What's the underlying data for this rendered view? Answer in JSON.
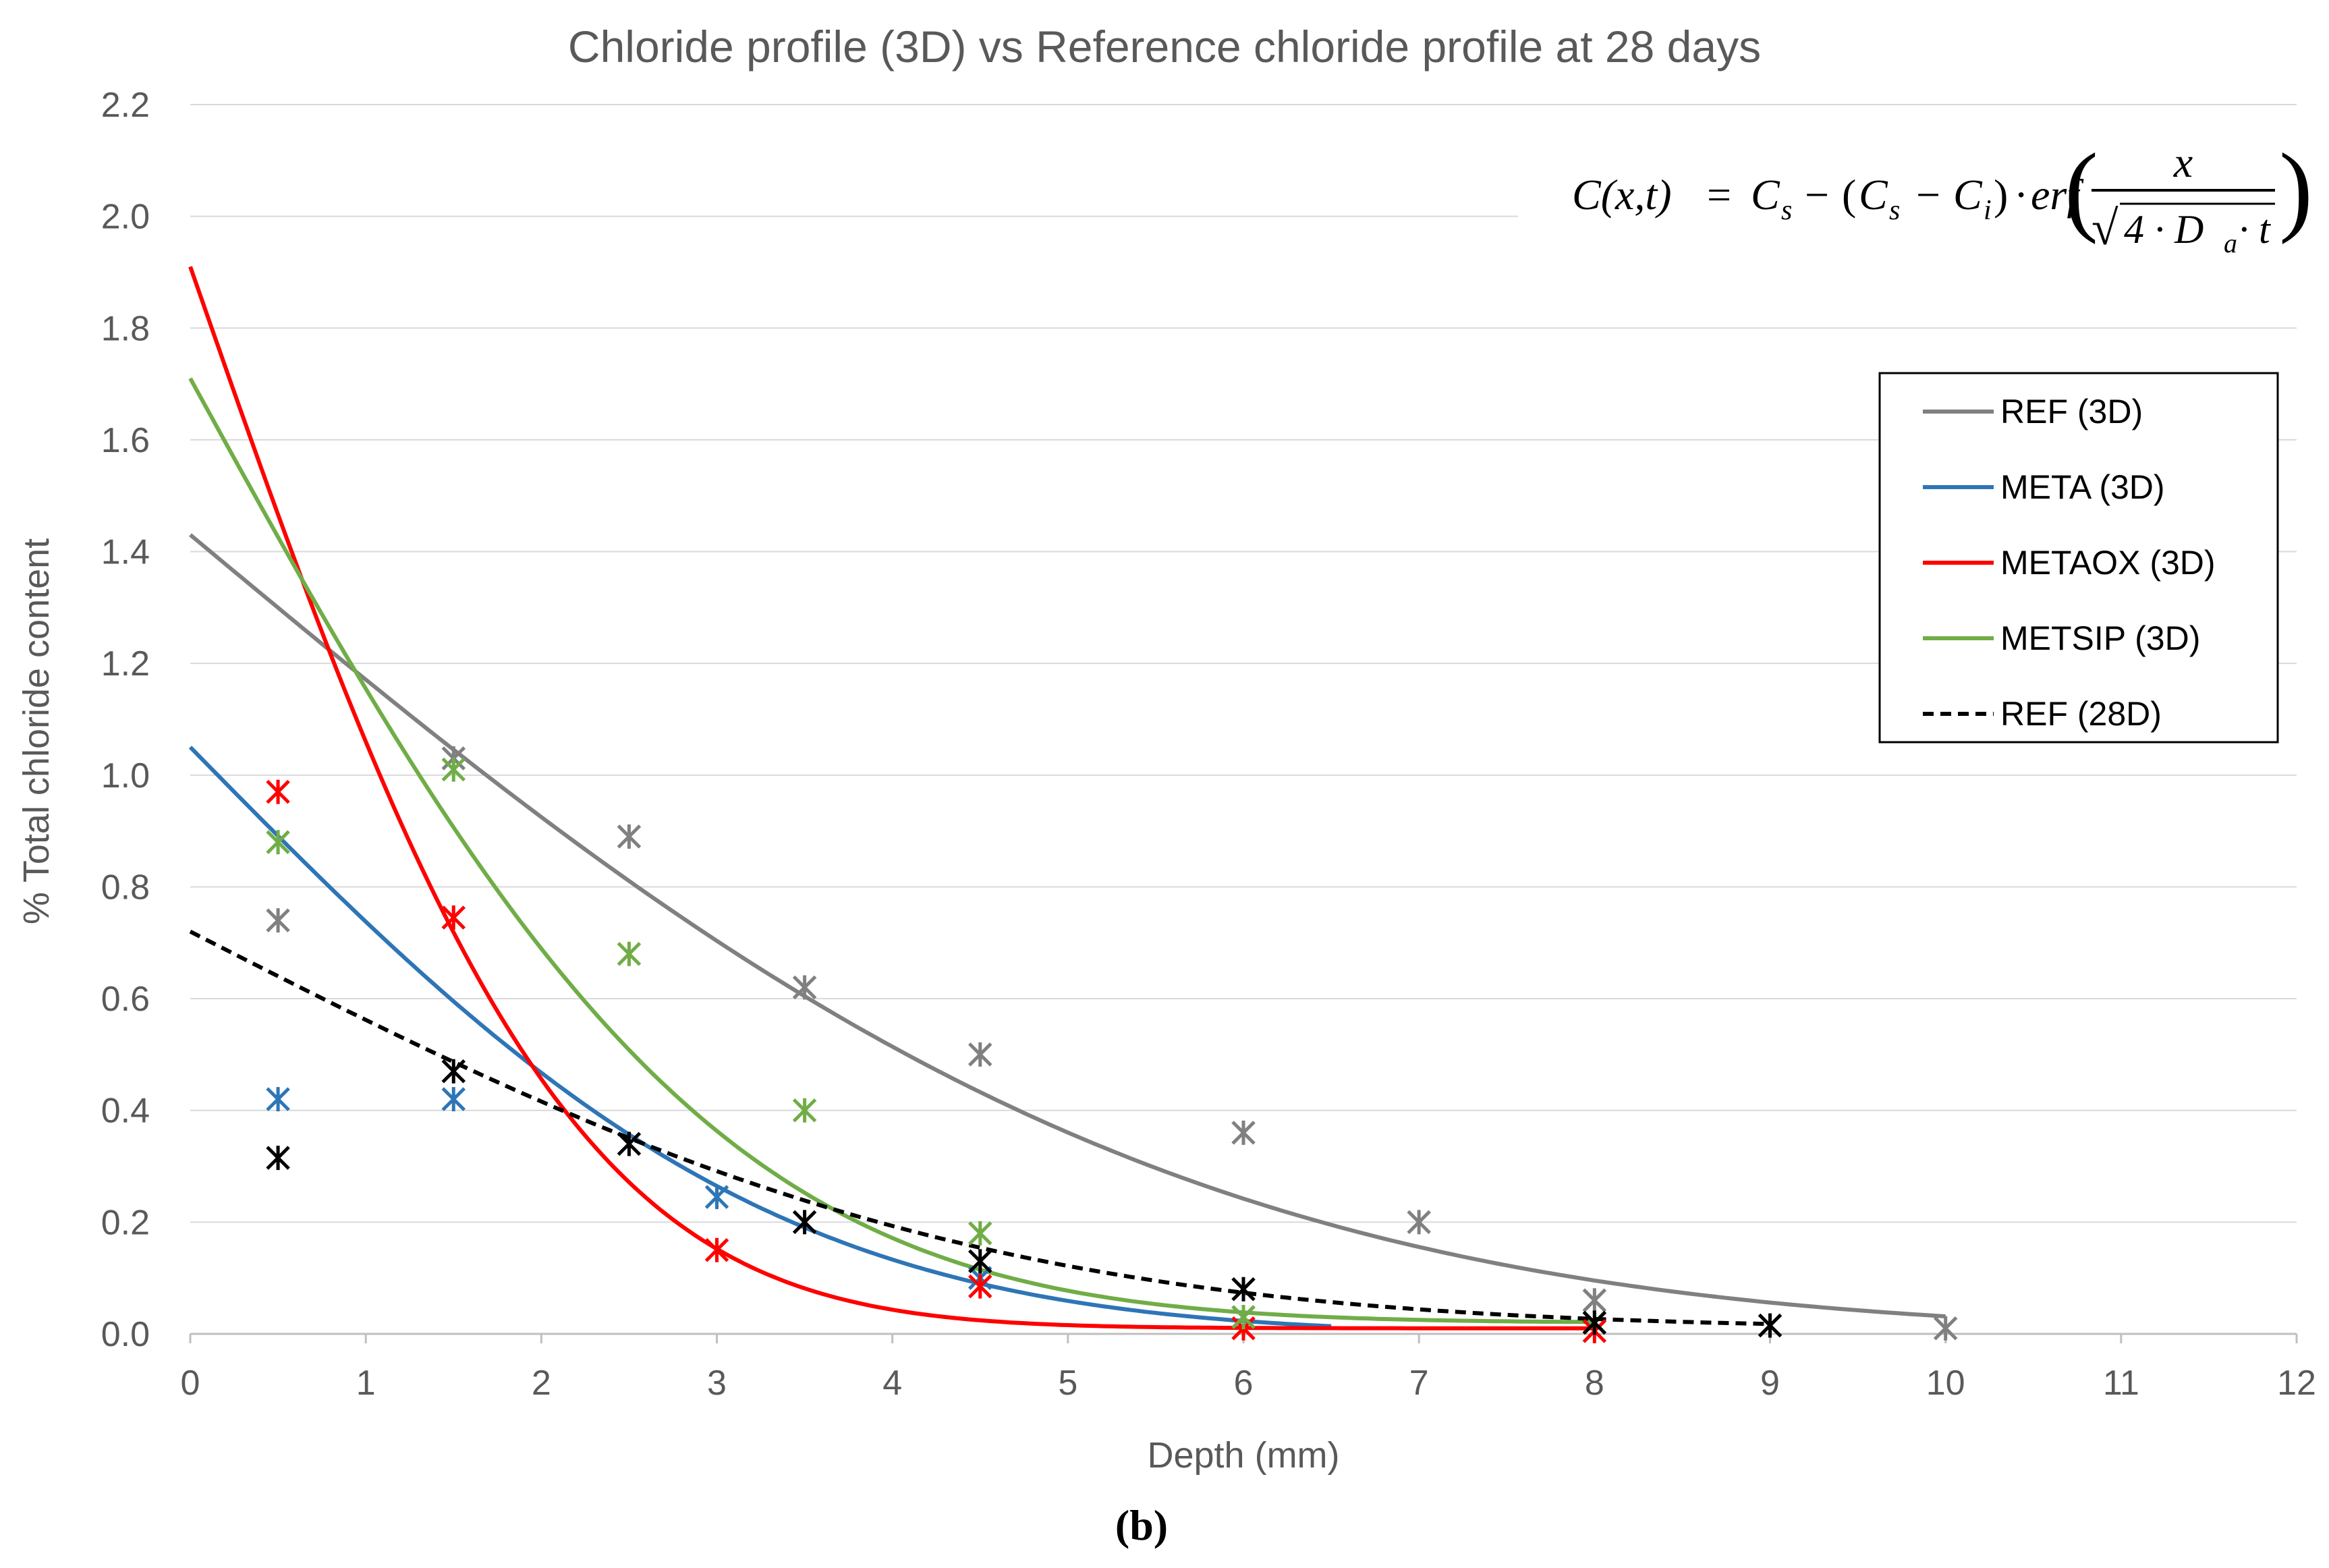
{
  "panel_label": "(b)",
  "equation": {
    "lhs": "C(x,t)",
    "eq": "=",
    "cs1": "C",
    "cs1_sub": "s",
    "minus1": "−",
    "open": "(",
    "cs2": "C",
    "cs2_sub": "s",
    "minus2": "−",
    "ci": "C",
    "ci_sub": "i",
    "close": ")",
    "dot": "·",
    "erf": "erf",
    "num": "x",
    "den_sqrt": "√",
    "den": "4 · D",
    "den_sub": "a",
    "den_tail": "· t"
  },
  "colors": {
    "ref3d": "#808080",
    "meta": "#2E75B6",
    "metaox": "#FF0000",
    "metsip": "#70AD47",
    "ref28": "#000000",
    "grid": "#D9D9D9",
    "axis_text": "#595959"
  },
  "chart_data": {
    "type": "scatter",
    "title": "Chloride profile (3D) vs Reference chloride profile at 28 days",
    "xlabel": "Depth (mm)",
    "ylabel": "% Total chloride content",
    "xlim": [
      0,
      12
    ],
    "ylim": [
      0,
      2.2
    ],
    "xticks": [
      "0",
      "1",
      "2",
      "3",
      "4",
      "5",
      "6",
      "7",
      "8",
      "9",
      "10",
      "11",
      "12"
    ],
    "yticks": [
      "0.0",
      "0.2",
      "0.4",
      "0.6",
      "0.8",
      "1.0",
      "1.2",
      "1.4",
      "1.6",
      "1.8",
      "2.0",
      "2.2"
    ],
    "legend_position": "right",
    "series": [
      {
        "key": "ref3d",
        "name": "REF (3D)",
        "dash": false,
        "points": [
          [
            0.5,
            0.74
          ],
          [
            1.5,
            1.03
          ],
          [
            2.5,
            0.89
          ],
          [
            3.5,
            0.62
          ],
          [
            4.5,
            0.5
          ],
          [
            6,
            0.36
          ],
          [
            7,
            0.2
          ],
          [
            8,
            0.06
          ],
          [
            10,
            0.01
          ]
        ],
        "fit": {
          "cs": 1.43,
          "ci": 0.0,
          "k": 0.162,
          "xmax": 10
        }
      },
      {
        "key": "meta",
        "name": "META (3D)",
        "dash": false,
        "points": [
          [
            0.5,
            0.42
          ],
          [
            1.5,
            0.42
          ],
          [
            3,
            0.245
          ],
          [
            4.5,
            0.1
          ],
          [
            6,
            0.03
          ]
        ],
        "fit": {
          "cs": 1.05,
          "ci": 0.0,
          "k": 0.27,
          "xmax": 6.5
        }
      },
      {
        "key": "metaox",
        "name": "METAOX (3D)",
        "dash": false,
        "points": [
          [
            0.5,
            0.97
          ],
          [
            1.5,
            0.745
          ],
          [
            3,
            0.15
          ],
          [
            4.5,
            0.085
          ],
          [
            6,
            0.01
          ],
          [
            8,
            0.005
          ]
        ],
        "fit": {
          "cs": 1.91,
          "ci": 0.01,
          "k": 0.42,
          "xmax": 8
        }
      },
      {
        "key": "metsip",
        "name": "METSIP (3D)",
        "dash": false,
        "points": [
          [
            0.5,
            0.88
          ],
          [
            1.5,
            1.01
          ],
          [
            2.5,
            0.68
          ],
          [
            3.5,
            0.4
          ],
          [
            4.5,
            0.18
          ],
          [
            6,
            0.03
          ],
          [
            8,
            0.02
          ]
        ],
        "fit": {
          "cs": 1.71,
          "ci": 0.02,
          "k": 0.3,
          "xmax": 8
        }
      },
      {
        "key": "ref28",
        "name": "REF (28D)",
        "dash": true,
        "points": [
          [
            0.5,
            0.315
          ],
          [
            1.5,
            0.47
          ],
          [
            2.5,
            0.34
          ],
          [
            3.5,
            0.2
          ],
          [
            4.5,
            0.13
          ],
          [
            6,
            0.08
          ],
          [
            8,
            0.02
          ],
          [
            9,
            0.015
          ]
        ],
        "fit": {
          "cs": 0.72,
          "ci": 0.01,
          "k": 0.2,
          "xmax": 9
        }
      }
    ]
  }
}
